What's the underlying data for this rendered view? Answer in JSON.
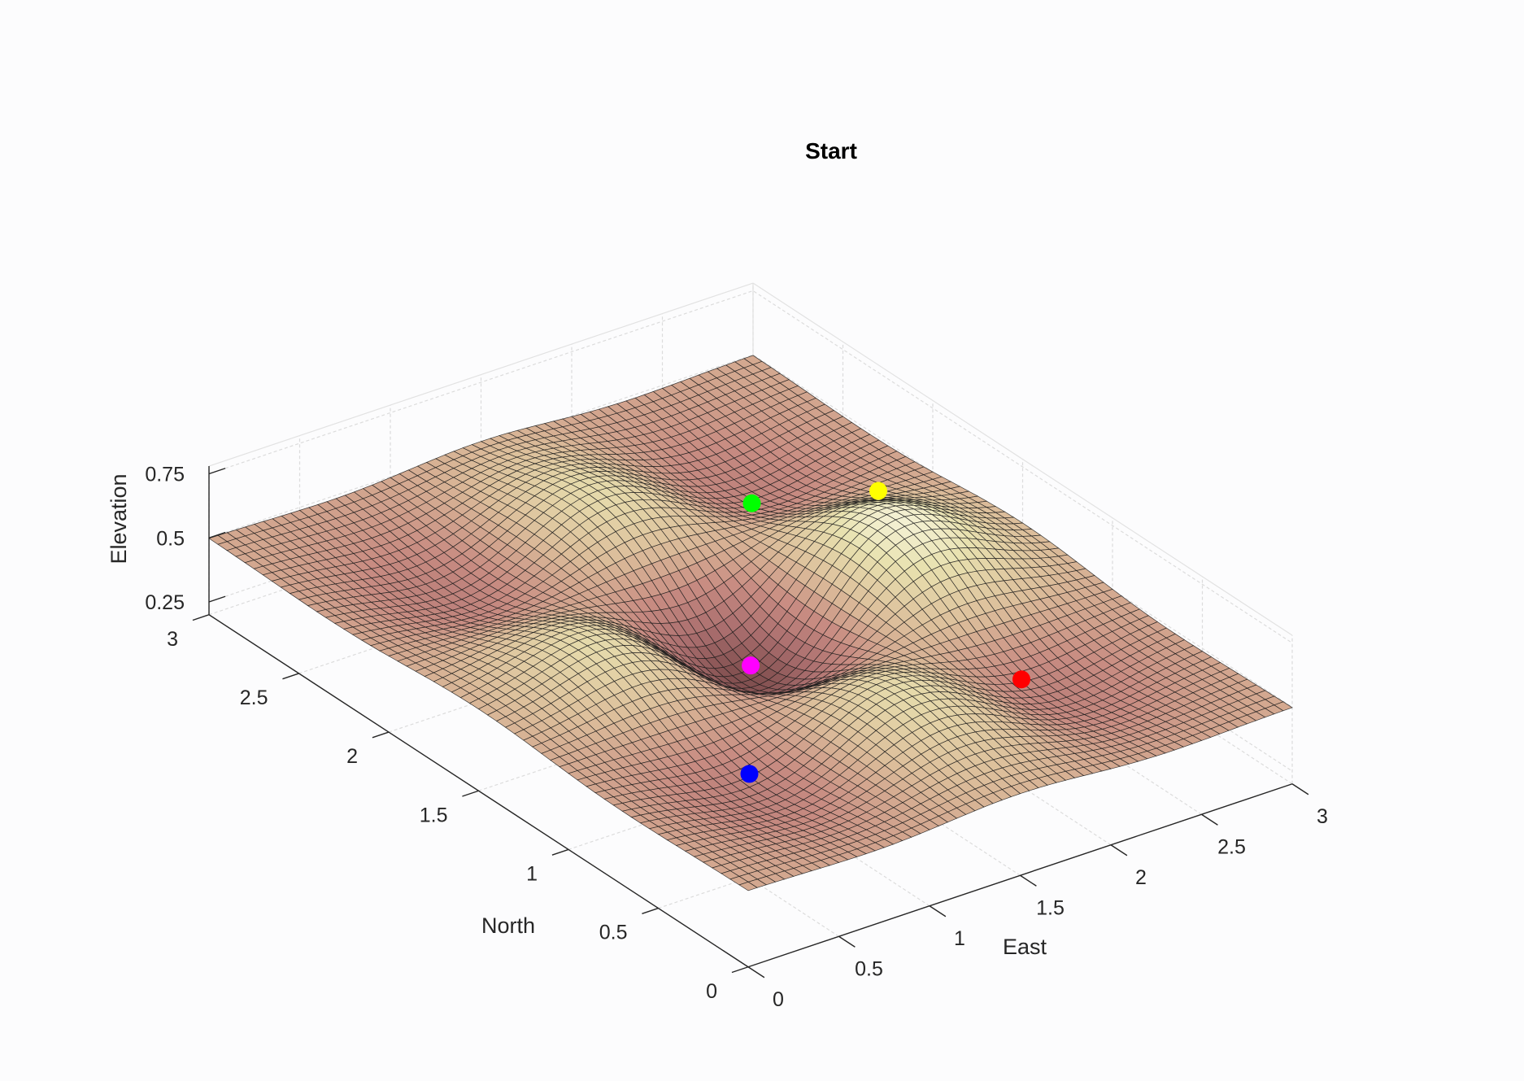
{
  "chart_data": {
    "type": "surface",
    "title": "Start",
    "xlabel": "East",
    "ylabel": "North",
    "zlabel": "Elevation",
    "xlim": [
      0,
      3
    ],
    "ylim": [
      0,
      3
    ],
    "zlim": [
      0.15,
      0.8
    ],
    "x_ticks": [
      "0",
      "0.5",
      "1",
      "1.5",
      "2",
      "2.5",
      "3"
    ],
    "y_ticks": [
      "0",
      "0.5",
      "1",
      "1.5",
      "2",
      "2.5",
      "3"
    ],
    "z_ticks": [
      "0.25",
      "0.5",
      "0.75"
    ],
    "grid": true,
    "colormap": "pink",
    "surface": {
      "base": 0.5,
      "bumps": [
        {
          "x": 0.75,
          "y": 1.5,
          "amplitude": 0.18,
          "width": 0.5
        },
        {
          "x": 1.5,
          "y": 0.75,
          "amplitude": 0.18,
          "width": 0.5
        },
        {
          "x": 2.25,
          "y": 1.5,
          "amplitude": 0.27,
          "width": 0.5
        },
        {
          "x": 1.5,
          "y": 2.25,
          "amplitude": 0.18,
          "width": 0.5
        },
        {
          "x": 1.5,
          "y": 1.5,
          "amplitude": -0.32,
          "width": 0.5
        },
        {
          "x": 0.75,
          "y": 0.75,
          "amplitude": -0.12,
          "width": 0.5
        },
        {
          "x": 2.25,
          "y": 2.25,
          "amplitude": -0.12,
          "width": 0.5
        },
        {
          "x": 2.25,
          "y": 0.75,
          "amplitude": -0.12,
          "width": 0.5
        },
        {
          "x": 0.75,
          "y": 2.25,
          "amplitude": -0.12,
          "width": 0.5
        }
      ]
    },
    "points": [
      {
        "x": 2.25,
        "y": 2.25,
        "z": 0.3,
        "color": "#00ff00"
      },
      {
        "x": 2.65,
        "y": 1.95,
        "z": 0.31,
        "color": "#ffff00"
      },
      {
        "x": 1.55,
        "y": 1.55,
        "z": 0.24,
        "color": "#ff00ff"
      },
      {
        "x": 2.25,
        "y": 0.75,
        "z": 0.31,
        "color": "#ff0000"
      },
      {
        "x": 0.75,
        "y": 0.75,
        "z": 0.3,
        "color": "#0000ff"
      }
    ]
  }
}
